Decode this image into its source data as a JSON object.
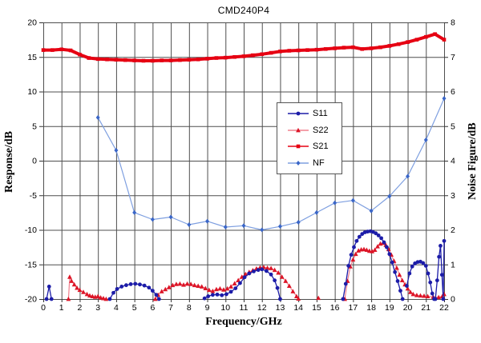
{
  "chart_data": {
    "type": "line",
    "title": "CMD240P4",
    "xlabel": "Frequency/GHz",
    "ylabel_left": "Response/dB",
    "ylabel_right": "Noise Figure/dB",
    "xlim": [
      0,
      22
    ],
    "ylim_left": [
      -20,
      20
    ],
    "ylim_right": [
      0,
      8
    ],
    "x_ticks": [
      0,
      1,
      2,
      3,
      4,
      5,
      6,
      7,
      8,
      9,
      10,
      11,
      12,
      13,
      14,
      15,
      16,
      17,
      18,
      19,
      20,
      21,
      22
    ],
    "y_ticks_left": [
      20,
      15,
      10,
      5,
      0,
      -5,
      -10,
      -15,
      -20
    ],
    "y_ticks_right": [
      8,
      7,
      6,
      5,
      4,
      3,
      2,
      1,
      0
    ],
    "grid": true,
    "grid_color": "#4f4f4f",
    "legend": {
      "position": "inside-center-left",
      "items": [
        "S11",
        "S22",
        "S21",
        "NF"
      ]
    },
    "series": [
      {
        "name": "S11",
        "axis": "left",
        "marker": "circle",
        "line_color": "#1c1ca8",
        "marker_color": "#1c1ca8",
        "line_width": 1.3,
        "segments": [
          [
            [
              0.18,
              -20
            ],
            [
              0.32,
              -18.2
            ],
            [
              0.45,
              -20
            ]
          ],
          [
            [
              3.65,
              -20
            ],
            [
              3.85,
              -19.1
            ],
            [
              4.05,
              -18.55
            ],
            [
              4.3,
              -18.2
            ],
            [
              4.55,
              -18.0
            ],
            [
              4.8,
              -17.85
            ],
            [
              5.05,
              -17.8
            ],
            [
              5.3,
              -17.9
            ],
            [
              5.55,
              -18.05
            ],
            [
              5.8,
              -18.35
            ],
            [
              6.0,
              -18.8
            ],
            [
              6.2,
              -19.4
            ],
            [
              6.35,
              -20
            ]
          ],
          [
            [
              8.85,
              -19.9
            ],
            [
              9.05,
              -19.6
            ],
            [
              9.3,
              -19.4
            ],
            [
              9.55,
              -19.35
            ],
            [
              9.8,
              -19.45
            ],
            [
              10.05,
              -19.3
            ],
            [
              10.3,
              -18.95
            ],
            [
              10.55,
              -18.45
            ],
            [
              10.8,
              -17.7
            ],
            [
              11.05,
              -16.85
            ],
            [
              11.3,
              -16.3
            ],
            [
              11.55,
              -16.0
            ],
            [
              11.8,
              -15.8
            ],
            [
              12.0,
              -15.7
            ],
            [
              12.25,
              -15.95
            ],
            [
              12.5,
              -16.45
            ],
            [
              12.7,
              -17.3
            ],
            [
              12.85,
              -18.4
            ],
            [
              13.0,
              -20
            ]
          ],
          [
            [
              16.45,
              -20
            ],
            [
              16.6,
              -17.8
            ],
            [
              16.75,
              -15.2
            ],
            [
              16.9,
              -13.6
            ],
            [
              17.05,
              -12.5
            ],
            [
              17.2,
              -11.6
            ],
            [
              17.35,
              -11.0
            ],
            [
              17.5,
              -10.6
            ],
            [
              17.65,
              -10.35
            ],
            [
              17.8,
              -10.25
            ],
            [
              17.95,
              -10.2
            ],
            [
              18.1,
              -10.3
            ],
            [
              18.25,
              -10.5
            ],
            [
              18.4,
              -10.8
            ],
            [
              18.55,
              -11.2
            ],
            [
              18.7,
              -11.8
            ],
            [
              18.85,
              -12.5
            ],
            [
              19.0,
              -13.5
            ],
            [
              19.15,
              -14.7
            ],
            [
              19.3,
              -16.1
            ],
            [
              19.45,
              -17.4
            ],
            [
              19.6,
              -18.8
            ],
            [
              19.72,
              -20
            ]
          ],
          [
            [
              19.95,
              -18.1
            ],
            [
              20.1,
              -16.3
            ],
            [
              20.25,
              -15.3
            ],
            [
              20.4,
              -14.85
            ],
            [
              20.55,
              -14.65
            ],
            [
              20.7,
              -14.6
            ],
            [
              20.85,
              -14.8
            ],
            [
              21.0,
              -15.2
            ],
            [
              21.12,
              -16.3
            ],
            [
              21.24,
              -17.6
            ],
            [
              21.35,
              -19.2
            ],
            [
              21.45,
              -20
            ]
          ],
          [
            [
              21.52,
              -20
            ],
            [
              21.62,
              -17.3
            ],
            [
              21.72,
              -13.9
            ],
            [
              21.8,
              -12.3
            ],
            [
              21.88,
              -16.5
            ],
            [
              21.95,
              -20
            ],
            [
              22.0,
              -11.6
            ]
          ]
        ]
      },
      {
        "name": "S22",
        "axis": "left",
        "marker": "triangle",
        "line_color": "#f0808e",
        "marker_color": "#dc1426",
        "line_width": 1.2,
        "segments": [
          [
            [
              1.38,
              -20
            ],
            [
              1.45,
              -16.8
            ],
            [
              1.55,
              -17.4
            ],
            [
              1.7,
              -17.9
            ],
            [
              1.85,
              -18.4
            ],
            [
              2.0,
              -18.7
            ],
            [
              2.2,
              -19.0
            ],
            [
              2.4,
              -19.3
            ],
            [
              2.55,
              -19.5
            ],
            [
              2.7,
              -19.6
            ],
            [
              2.85,
              -19.7
            ],
            [
              3.0,
              -19.6
            ],
            [
              3.15,
              -19.8
            ],
            [
              3.3,
              -19.9
            ],
            [
              3.45,
              -20
            ]
          ],
          [
            [
              6.15,
              -20
            ],
            [
              6.3,
              -19.4
            ],
            [
              6.5,
              -18.9
            ],
            [
              6.7,
              -18.6
            ],
            [
              6.9,
              -18.3
            ],
            [
              7.1,
              -18.0
            ],
            [
              7.3,
              -17.85
            ],
            [
              7.5,
              -17.8
            ],
            [
              7.7,
              -17.95
            ],
            [
              7.9,
              -17.8
            ],
            [
              8.1,
              -17.85
            ],
            [
              8.3,
              -18.0
            ],
            [
              8.5,
              -18.1
            ],
            [
              8.7,
              -18.2
            ],
            [
              8.9,
              -18.45
            ],
            [
              9.1,
              -18.7
            ],
            [
              9.3,
              -18.85
            ],
            [
              9.5,
              -18.6
            ],
            [
              9.7,
              -18.5
            ],
            [
              9.9,
              -18.65
            ],
            [
              10.1,
              -18.5
            ],
            [
              10.3,
              -18.2
            ],
            [
              10.5,
              -17.75
            ],
            [
              10.7,
              -17.3
            ],
            [
              10.9,
              -16.8
            ],
            [
              11.1,
              -16.4
            ],
            [
              11.3,
              -16.1
            ],
            [
              11.5,
              -15.85
            ],
            [
              11.7,
              -15.6
            ],
            [
              11.9,
              -15.45
            ],
            [
              12.1,
              -15.4
            ],
            [
              12.3,
              -15.5
            ],
            [
              12.5,
              -15.55
            ],
            [
              12.7,
              -15.8
            ],
            [
              12.9,
              -16.2
            ],
            [
              13.1,
              -16.8
            ],
            [
              13.3,
              -17.4
            ],
            [
              13.5,
              -18.1
            ],
            [
              13.7,
              -18.9
            ],
            [
              13.9,
              -19.6
            ],
            [
              14.0,
              -19.95
            ]
          ],
          [
            [
              15.1,
              -19.85
            ]
          ],
          [
            [
              16.55,
              -20
            ],
            [
              16.7,
              -17.4
            ],
            [
              16.85,
              -15.3
            ],
            [
              17.0,
              -14.3
            ],
            [
              17.15,
              -13.5
            ],
            [
              17.3,
              -13.0
            ],
            [
              17.45,
              -12.85
            ],
            [
              17.6,
              -12.8
            ],
            [
              17.75,
              -12.9
            ],
            [
              17.9,
              -13.05
            ],
            [
              18.05,
              -13.1
            ],
            [
              18.2,
              -12.9
            ],
            [
              18.35,
              -12.4
            ],
            [
              18.5,
              -12.0
            ],
            [
              18.65,
              -11.9
            ],
            [
              18.8,
              -12.2
            ],
            [
              18.95,
              -12.8
            ],
            [
              19.1,
              -13.6
            ],
            [
              19.25,
              -14.5
            ],
            [
              19.4,
              -15.5
            ],
            [
              19.55,
              -16.5
            ],
            [
              19.7,
              -17.3
            ],
            [
              19.85,
              -17.9
            ],
            [
              20.0,
              -18.5
            ],
            [
              20.15,
              -19.0
            ],
            [
              20.3,
              -19.3
            ],
            [
              20.5,
              -19.45
            ],
            [
              20.7,
              -19.5
            ],
            [
              20.9,
              -19.55
            ],
            [
              21.1,
              -19.6
            ],
            [
              21.4,
              -19.7
            ],
            [
              21.7,
              -19.75
            ],
            [
              21.9,
              -19.6
            ],
            [
              22.0,
              -19.3
            ]
          ]
        ]
      },
      {
        "name": "S21",
        "axis": "left",
        "marker": "square",
        "line_color": "#e60012",
        "marker_color": "#e60012",
        "line_width": 4,
        "segments": [
          [
            [
              0,
              16.0
            ],
            [
              0.5,
              16.0
            ],
            [
              1,
              16.1
            ],
            [
              1.5,
              15.95
            ],
            [
              2,
              15.35
            ],
            [
              2.5,
              14.85
            ],
            [
              3,
              14.7
            ],
            [
              3.5,
              14.65
            ],
            [
              4,
              14.6
            ],
            [
              4.5,
              14.55
            ],
            [
              5,
              14.5
            ],
            [
              5.5,
              14.45
            ],
            [
              6,
              14.45
            ],
            [
              6.5,
              14.5
            ],
            [
              7,
              14.5
            ],
            [
              7.5,
              14.55
            ],
            [
              8,
              14.6
            ],
            [
              8.5,
              14.65
            ],
            [
              9,
              14.75
            ],
            [
              9.5,
              14.85
            ],
            [
              10,
              14.9
            ],
            [
              10.5,
              15.0
            ],
            [
              11,
              15.1
            ],
            [
              11.5,
              15.25
            ],
            [
              12,
              15.4
            ],
            [
              12.5,
              15.6
            ],
            [
              13,
              15.8
            ],
            [
              13.5,
              15.9
            ],
            [
              14,
              15.95
            ],
            [
              14.5,
              16.0
            ],
            [
              15,
              16.05
            ],
            [
              15.5,
              16.15
            ],
            [
              16,
              16.25
            ],
            [
              16.5,
              16.35
            ],
            [
              17,
              16.4
            ],
            [
              17.5,
              16.15
            ],
            [
              18,
              16.25
            ],
            [
              18.5,
              16.4
            ],
            [
              19,
              16.6
            ],
            [
              19.5,
              16.85
            ],
            [
              20,
              17.15
            ],
            [
              20.5,
              17.5
            ],
            [
              21,
              17.9
            ],
            [
              21.5,
              18.3
            ],
            [
              22,
              17.5
            ]
          ]
        ]
      },
      {
        "name": "NF",
        "axis": "right",
        "marker": "diamond",
        "line_color": "#7e9fe0",
        "marker_color": "#3a66c8",
        "line_width": 1.2,
        "segments": [
          [
            [
              3,
              5.25
            ],
            [
              4,
              4.3
            ],
            [
              5,
              2.5
            ],
            [
              6,
              2.3
            ],
            [
              7,
              2.37
            ],
            [
              8,
              2.15
            ],
            [
              9,
              2.25
            ],
            [
              10,
              2.08
            ],
            [
              11,
              2.12
            ],
            [
              12,
              2.0
            ],
            [
              13,
              2.1
            ],
            [
              14,
              2.22
            ],
            [
              15,
              2.5
            ],
            [
              16,
              2.78
            ],
            [
              17,
              2.85
            ],
            [
              18,
              2.55
            ],
            [
              19,
              2.97
            ],
            [
              20,
              3.55
            ],
            [
              21,
              4.6
            ],
            [
              22,
              5.8
            ]
          ]
        ]
      }
    ]
  }
}
